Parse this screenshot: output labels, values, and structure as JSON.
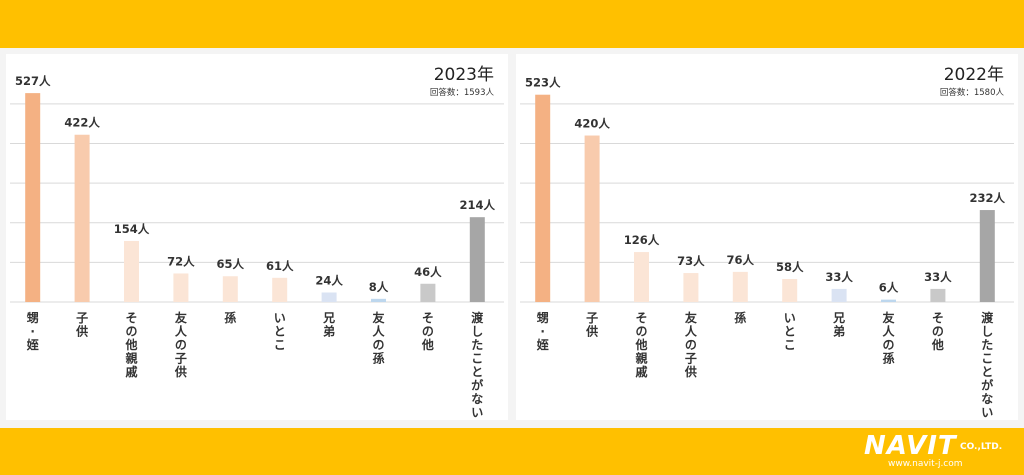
{
  "brand": {
    "logo": "NAVIT",
    "company": "CO.,LTD.",
    "url": "www.navit-j.com"
  },
  "chart_data": [
    {
      "type": "bar",
      "title": "2023年",
      "subtitle": "回答数：1593人",
      "unit": "人",
      "categories": [
        "甥・姪",
        "子供",
        "その他親戚",
        "友人の子供",
        "孫",
        "いとこ",
        "兄弟",
        "友人の孫",
        "その他",
        "渡したことがない"
      ],
      "values": [
        527,
        422,
        154,
        72,
        65,
        61,
        24,
        8,
        46,
        214
      ],
      "colors": [
        "#F4B183",
        "#F8CBAD",
        "#FBE5D6",
        "#FBE5D6",
        "#FBE5D6",
        "#FBE5D6",
        "#DAE3F3",
        "#BDD7EE",
        "#C9C9C9",
        "#A6A6A6"
      ],
      "ylim": [
        0,
        550
      ],
      "grid": true,
      "gridlines": [
        0,
        100,
        200,
        300,
        400,
        500
      ]
    },
    {
      "type": "bar",
      "title": "2022年",
      "subtitle": "回答数：1580人",
      "unit": "人",
      "categories": [
        "甥・姪",
        "子供",
        "その他親戚",
        "友人の子供",
        "孫",
        "いとこ",
        "兄弟",
        "友人の孫",
        "その他",
        "渡したことがない"
      ],
      "values": [
        523,
        420,
        126,
        73,
        76,
        58,
        33,
        6,
        33,
        232
      ],
      "colors": [
        "#F4B183",
        "#F8CBAD",
        "#FBE5D6",
        "#FBE5D6",
        "#FBE5D6",
        "#FBE5D6",
        "#DAE3F3",
        "#BDD7EE",
        "#C9C9C9",
        "#A6A6A6"
      ],
      "ylim": [
        0,
        550
      ],
      "grid": true,
      "gridlines": [
        0,
        100,
        200,
        300,
        400,
        500
      ]
    }
  ]
}
